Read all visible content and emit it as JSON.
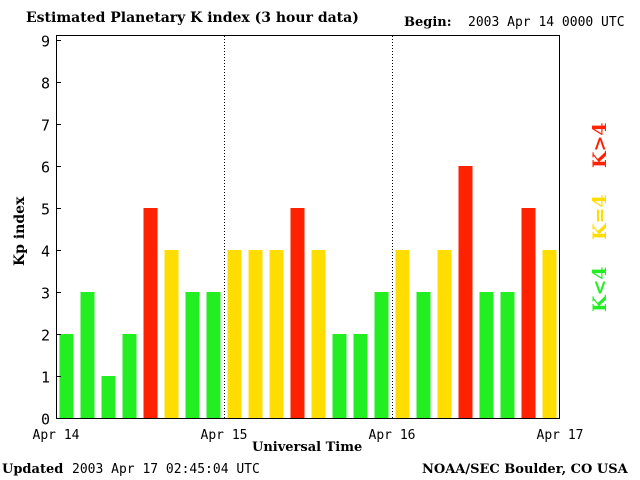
{
  "header": {
    "title": "Estimated Planetary K index (3 hour data)",
    "begin_label": "Begin:",
    "begin_value": "2003 Apr 14 0000 UTC"
  },
  "footer": {
    "updated_label": "Updated",
    "updated_value": "2003 Apr 17 02:45:04 UTC",
    "source": "NOAA/SEC Boulder, CO USA"
  },
  "legend": {
    "low": "K<4",
    "mid": "K=4",
    "high": "K>4"
  },
  "colors": {
    "low": "#22ee22",
    "mid": "#ffdd00",
    "high": "#ff2200",
    "axis": "#000000"
  },
  "chart_data": {
    "type": "bar",
    "title": "Estimated Planetary K index (3 hour data)",
    "xlabel": "Universal Time",
    "ylabel": "Kp index",
    "ylim": [
      0,
      9
    ],
    "yticks": [
      0,
      1,
      2,
      3,
      4,
      5,
      6,
      7,
      8,
      9
    ],
    "day_labels": [
      "Apr 14",
      "Apr 15",
      "Apr 16",
      "Apr 17"
    ],
    "bars_per_day": 8,
    "values": [
      2,
      3,
      1,
      2,
      5,
      4,
      3,
      3,
      4,
      4,
      4,
      5,
      4,
      2,
      2,
      3,
      4,
      3,
      4,
      6,
      3,
      3,
      5,
      4
    ]
  }
}
